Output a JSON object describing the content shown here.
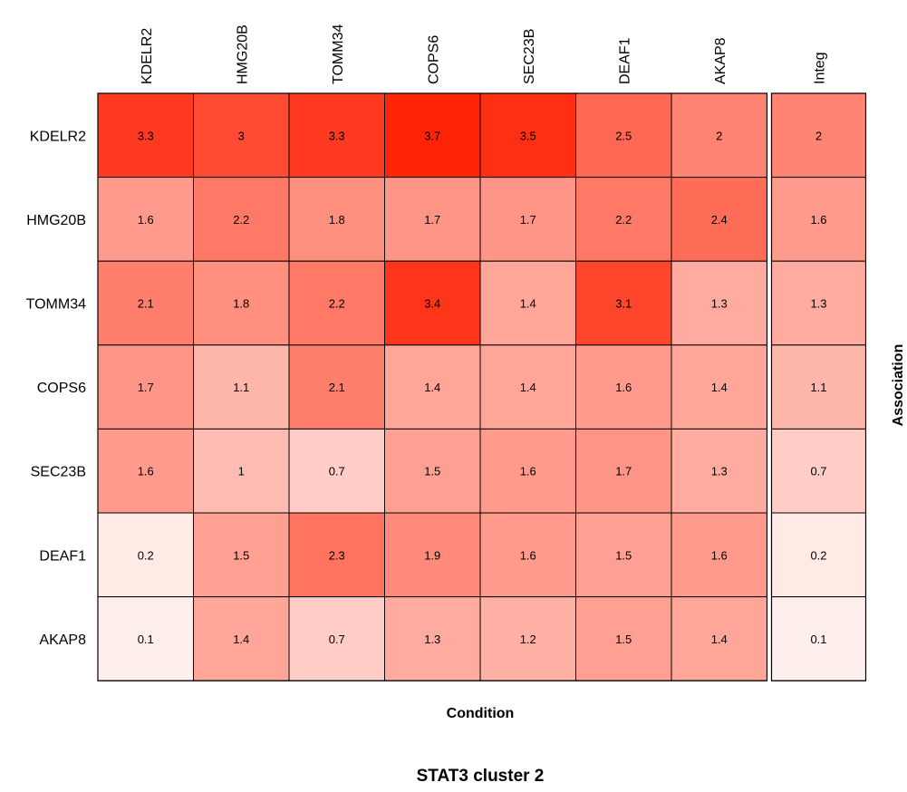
{
  "chart_data": {
    "type": "heatmap",
    "title": "STAT3 cluster 2",
    "xlabel": "Condition",
    "ylabel": "Association",
    "columns": [
      "KDELR2",
      "HMG20B",
      "TOMM34",
      "COPS6",
      "SEC23B",
      "DEAF1",
      "AKAP8"
    ],
    "integ_column": "Integ",
    "rows": [
      "KDELR2",
      "HMG20B",
      "TOMM34",
      "COPS6",
      "SEC23B",
      "DEAF1",
      "AKAP8"
    ],
    "values": [
      [
        3.3,
        3,
        3.3,
        3.7,
        3.5,
        2.5,
        2
      ],
      [
        1.6,
        2.2,
        1.8,
        1.7,
        1.7,
        2.2,
        2.4
      ],
      [
        2.1,
        1.8,
        2.2,
        3.4,
        1.4,
        3.1,
        1.3
      ],
      [
        1.7,
        1.1,
        2.1,
        1.4,
        1.4,
        1.6,
        1.4
      ],
      [
        1.6,
        1,
        0.7,
        1.5,
        1.6,
        1.7,
        1.3
      ],
      [
        0.2,
        1.5,
        2.3,
        1.9,
        1.6,
        1.5,
        1.6
      ],
      [
        0.1,
        1.4,
        0.7,
        1.3,
        1.2,
        1.5,
        1.4
      ]
    ],
    "integ_values": [
      2,
      1.6,
      1.3,
      1.1,
      0.7,
      0.2,
      0.1
    ],
    "color_low": "#fff5f2",
    "color_high": "#ff1e00",
    "value_range": [
      0,
      3.8
    ]
  }
}
